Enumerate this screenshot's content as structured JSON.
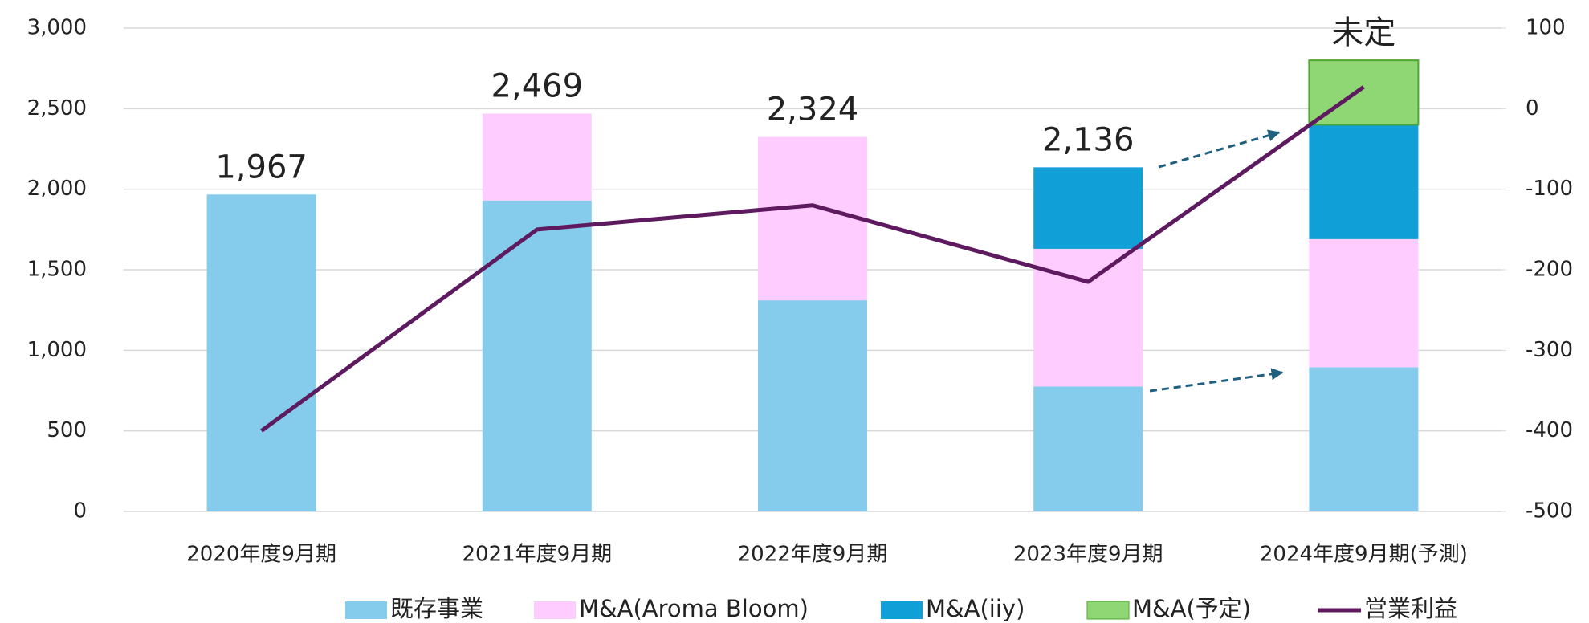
{
  "chart_data": {
    "type": "bar",
    "stacked": true,
    "categories": [
      "2020年度9月期",
      "2021年度9月期",
      "2022年度9月期",
      "2023年度9月期",
      "2024年度9月期(予測)"
    ],
    "series": [
      {
        "name": "既存事業",
        "color": "#85cbeb",
        "values": [
          1967,
          1930,
          1310,
          775,
          895
        ]
      },
      {
        "name": "M&A(Aroma Bloom)",
        "color": "#ffccff",
        "values": [
          null,
          539,
          1014,
          855,
          795
        ]
      },
      {
        "name": "M&A(iiy)",
        "color": "#119fd7",
        "values": [
          null,
          null,
          null,
          506,
          710
        ]
      },
      {
        "name": "M&A(予定)",
        "color": "#8fd774",
        "values": [
          null,
          null,
          null,
          null,
          400
        ]
      },
      {
        "name": "営業利益",
        "color": "#5e1a5e",
        "type": "line",
        "axis": "y2",
        "values": [
          -400,
          -150,
          -120,
          -215,
          27
        ]
      }
    ],
    "totals": [
      1967,
      2469,
      2324,
      2136,
      null
    ],
    "total_labels": [
      "1,967",
      "2,469",
      "2,324",
      "2,136",
      "未定"
    ],
    "ylim": [
      0,
      3000
    ],
    "yticks": [
      0,
      500,
      {
        "value": 1000,
        "label": "1,000"
      },
      {
        "value": 1500,
        "label": "1,500"
      },
      {
        "value": 2000,
        "label": "2,000"
      },
      {
        "value": 2500,
        "label": "2,500"
      },
      {
        "value": 3000,
        "label": "3,000"
      }
    ],
    "y2lim": [
      -500,
      100
    ],
    "y2ticks": [
      -500,
      -400,
      -300,
      -200,
      -100,
      0,
      100
    ],
    "grid": true,
    "legend": "bottom"
  }
}
